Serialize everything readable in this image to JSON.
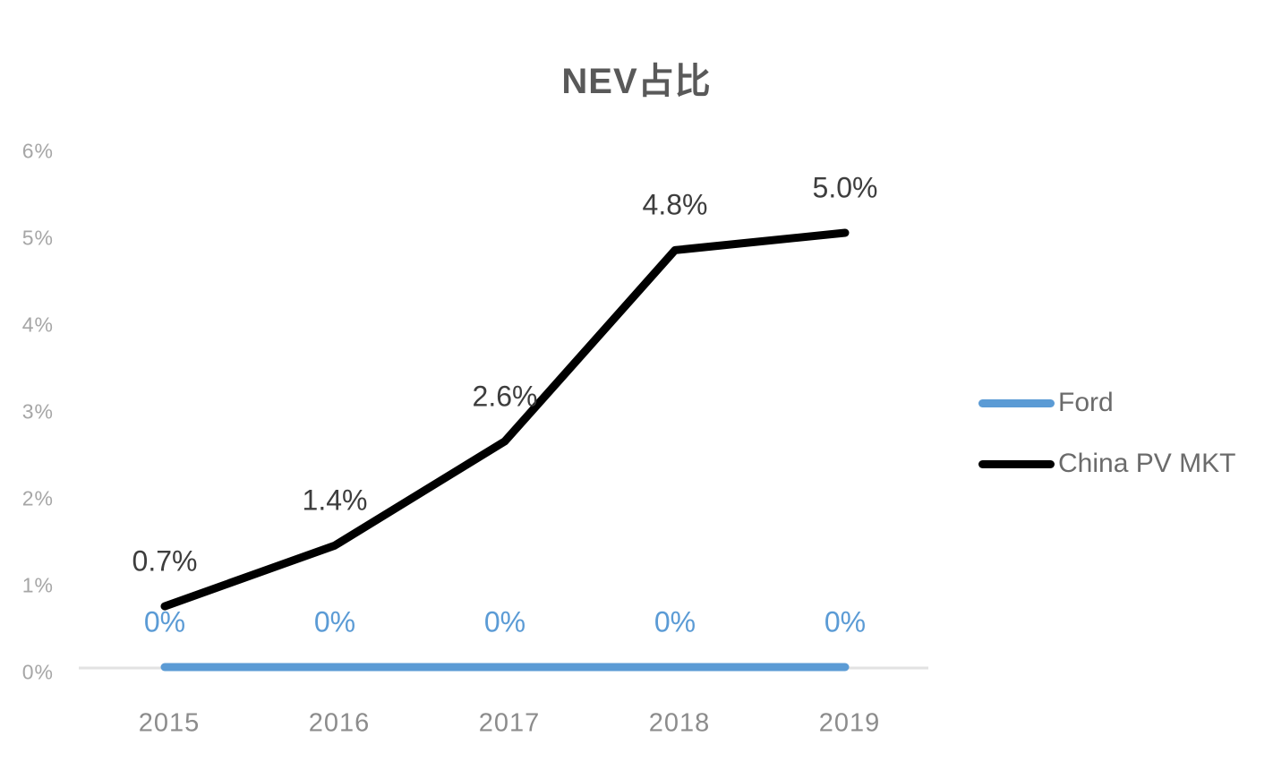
{
  "title": "NEV占比",
  "chart_data": {
    "type": "line",
    "title": "NEV占比",
    "categories": [
      "2015",
      "2016",
      "2017",
      "2018",
      "2019"
    ],
    "series": [
      {
        "name": "Ford",
        "color": "#5b9bd5",
        "label_color": "#5b9bd5",
        "values": [
          0,
          0,
          0,
          0,
          0
        ],
        "point_labels": [
          "0%",
          "0%",
          "0%",
          "0%",
          "0%"
        ]
      },
      {
        "name": "China PV MKT",
        "color": "#000000",
        "label_color": "#3d3d3d",
        "values": [
          0.7,
          1.4,
          2.6,
          4.8,
          5.0
        ],
        "point_labels": [
          "0.7%",
          "1.4%",
          "2.6%",
          "4.8%",
          "5.0%"
        ]
      }
    ],
    "y_ticks": [
      "0%",
      "1%",
      "2%",
      "3%",
      "4%",
      "5%",
      "6%"
    ],
    "ylim": [
      0,
      6
    ],
    "xlabel": "",
    "ylabel": "",
    "grid": false,
    "legend_position": "right",
    "colors": {
      "axis_line": "#e2e2e2",
      "y_tick_text": "#a6a6a6",
      "x_tick_text": "#8c8c8c",
      "legend_text": "#6b6b6b",
      "title_text": "#595959",
      "background": "#ffffff"
    }
  }
}
